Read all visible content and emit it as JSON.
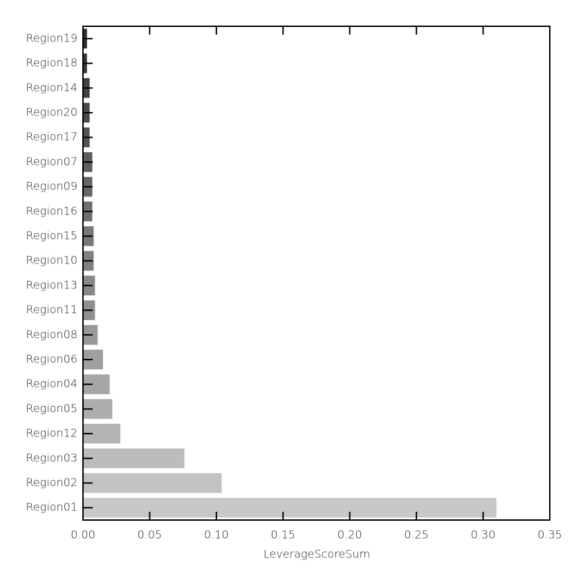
{
  "chart_data": {
    "type": "barh",
    "x_label": "LeverageScoreSum",
    "categories": [
      "Region01",
      "Region02",
      "Region03",
      "Region12",
      "Region05",
      "Region04",
      "Region06",
      "Region08",
      "Region11",
      "Region13",
      "Region10",
      "Region15",
      "Region16",
      "Region09",
      "Region07",
      "Region17",
      "Region20",
      "Region14",
      "Region18",
      "Region19"
    ],
    "values": [
      0.31,
      0.104,
      0.076,
      0.028,
      0.022,
      0.02,
      0.015,
      0.011,
      0.009,
      0.009,
      0.008,
      0.008,
      0.007,
      0.007,
      0.007,
      0.005,
      0.005,
      0.005,
      0.003,
      0.003
    ],
    "colors": [
      "#c8c8c8",
      "#c2c2c2",
      "#bcbcbc",
      "#b4b4b4",
      "#adadad",
      "#a6a6a6",
      "#9f9f9f",
      "#989898",
      "#909090",
      "#888888",
      "#808080",
      "#787878",
      "#6f6f6f",
      "#666666",
      "#5d5d5d",
      "#545454",
      "#4b4b4b",
      "#424242",
      "#383838",
      "#2e2e2e"
    ],
    "xlim": [
      0,
      0.35
    ],
    "xticks": [
      {
        "value": 0,
        "label": "0.00"
      },
      0.05,
      {
        "value": 0.1,
        "label": "0.10"
      },
      0.15,
      {
        "value": 0.2,
        "label": "0.20"
      },
      0.25,
      {
        "value": 0.3,
        "label": "0.30"
      },
      0.35
    ]
  }
}
